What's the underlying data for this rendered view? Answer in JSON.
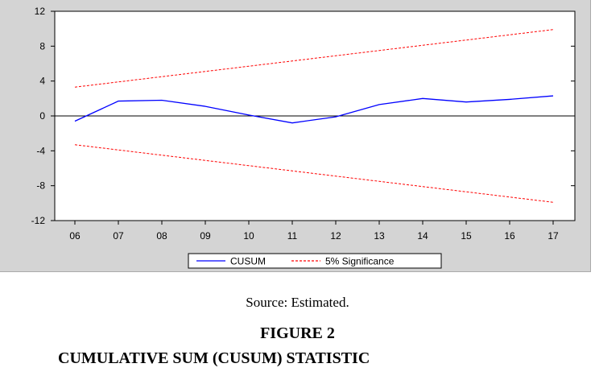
{
  "chart_data": {
    "type": "line",
    "x": [
      "06",
      "07",
      "08",
      "09",
      "10",
      "11",
      "12",
      "13",
      "14",
      "15",
      "16",
      "17"
    ],
    "series": [
      {
        "name": "CUSUM",
        "color": "#0000ff",
        "style": "solid",
        "values": [
          -0.6,
          1.7,
          1.8,
          1.1,
          0.1,
          -0.8,
          -0.1,
          1.3,
          2.0,
          1.6,
          1.9,
          2.3
        ]
      },
      {
        "name": "5% Significance",
        "color": "#ff0000",
        "style": "dashed",
        "values": [
          3.3,
          3.9,
          4.5,
          5.1,
          5.7,
          6.3,
          6.9,
          7.5,
          8.1,
          8.7,
          9.3,
          9.9
        ]
      },
      {
        "name": "",
        "color": "#ff0000",
        "style": "dashed",
        "values": [
          -3.3,
          -3.9,
          -4.5,
          -5.1,
          -5.7,
          -6.3,
          -6.9,
          -7.5,
          -8.1,
          -8.7,
          -9.3,
          -9.9
        ]
      }
    ],
    "yticks": [
      12,
      8,
      4,
      0,
      -4,
      -8,
      -12
    ],
    "ylim": [
      -12,
      12
    ],
    "zero_line": true,
    "grid": false,
    "legend_placement": "bottom-center",
    "legend": [
      {
        "label": "CUSUM",
        "color": "#0000ff",
        "style": "solid"
      },
      {
        "label": "5% Significance",
        "color": "#ff0000",
        "style": "dashed"
      }
    ]
  },
  "source_text": "Source: Estimated.",
  "figure_label": "FIGURE 2",
  "figure_caption": "CUMULATIVE SUM (CUSUM) STATISTIC"
}
